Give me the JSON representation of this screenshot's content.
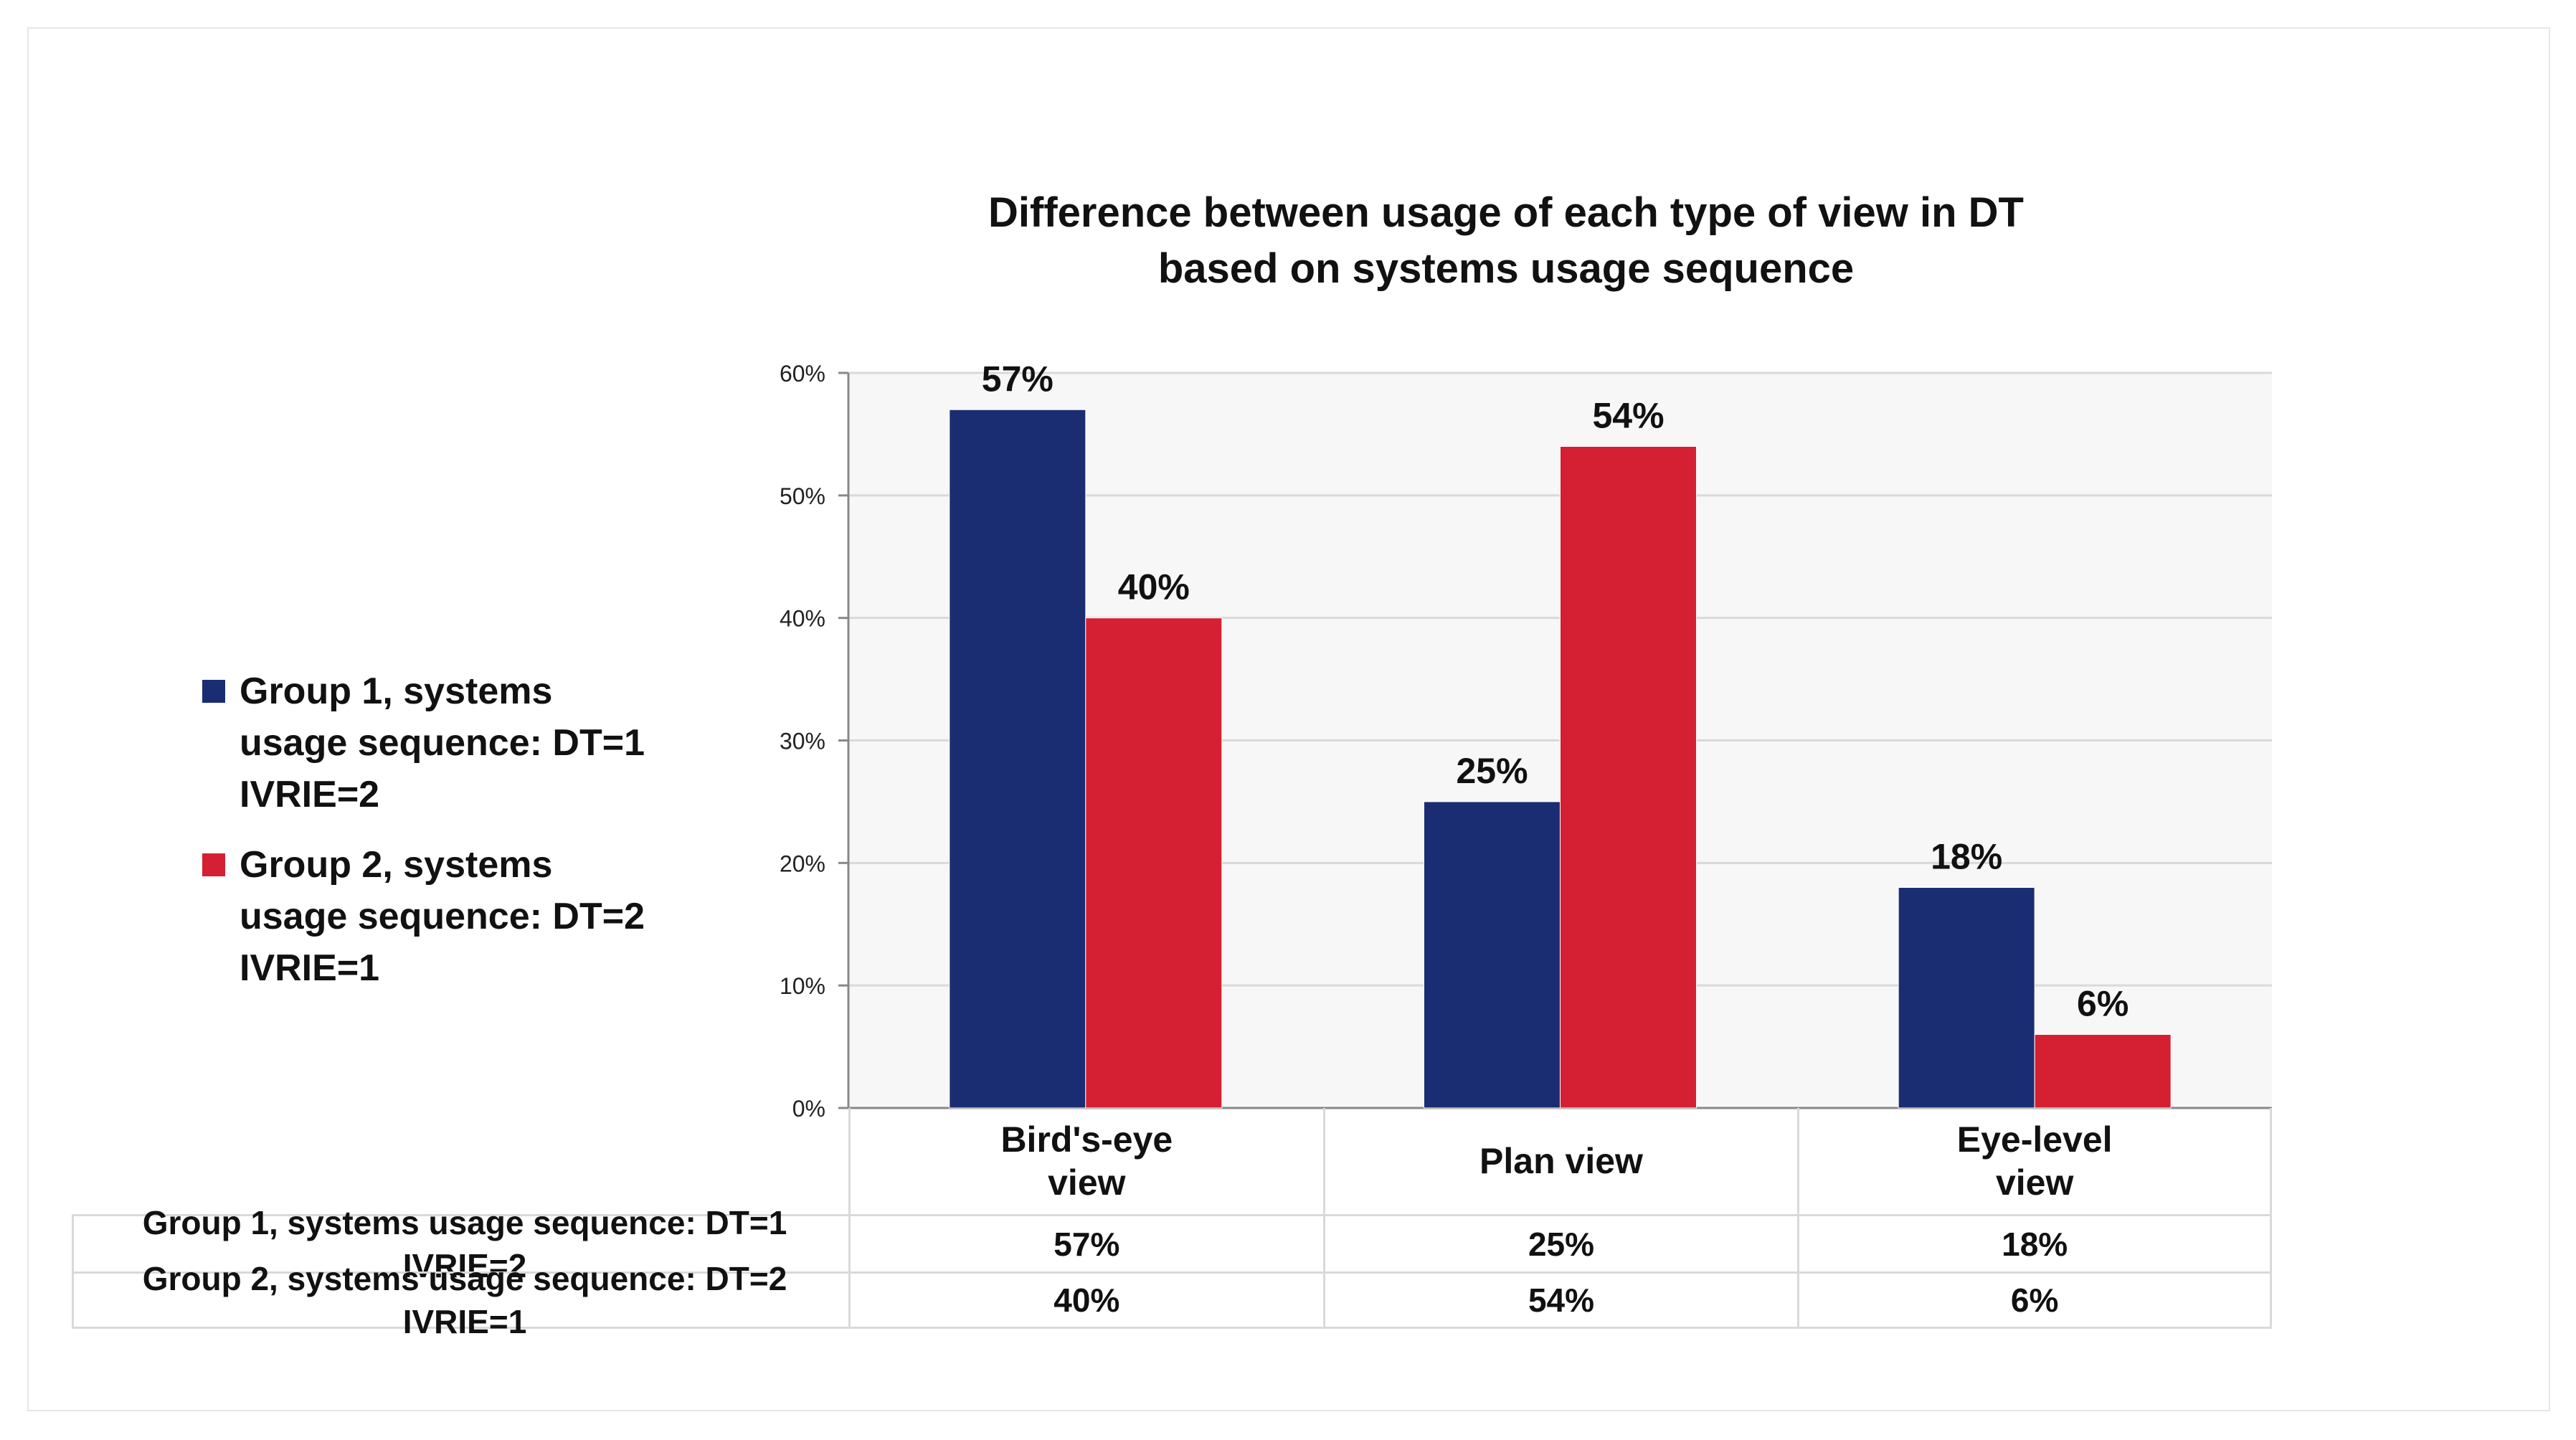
{
  "chart_data": {
    "type": "bar",
    "title_line1": "Difference between usage of each type of view in DT",
    "title_line2": "based on systems usage sequence",
    "categories": [
      "Bird's-eye view",
      "Plan view",
      "Eye-level view"
    ],
    "category_lines": [
      [
        "Bird's-eye",
        "view"
      ],
      [
        "Plan view"
      ],
      [
        "Eye-level",
        "view"
      ]
    ],
    "series": [
      {
        "name": "Group 1, systems usage sequence: DT=1 IVRIE=2",
        "legend_lines": [
          "Group 1, systems",
          "usage sequence: DT=1",
          "IVRIE=2"
        ],
        "values": [
          57,
          25,
          18
        ],
        "labels": [
          "57%",
          "25%",
          "18%"
        ],
        "color": "#1b2d72"
      },
      {
        "name": "Group 2, systems usage sequence: DT=2 IVRIE=1",
        "legend_lines": [
          "Group 2, systems",
          "usage sequence: DT=2",
          "IVRIE=1"
        ],
        "values": [
          40,
          54,
          6
        ],
        "labels": [
          "40%",
          "54%",
          "6%"
        ],
        "color": "#d52033"
      }
    ],
    "ylim": [
      0,
      60
    ],
    "yticks": [
      "0%",
      "10%",
      "20%",
      "30%",
      "40%",
      "50%",
      "60%"
    ],
    "xlabel": "",
    "ylabel": "",
    "grid": true,
    "legend": "left",
    "data_table": true
  },
  "colors": {
    "plot_background": "#f7f7f7",
    "gridline": "#d9d9d9",
    "axis": "#888888"
  }
}
